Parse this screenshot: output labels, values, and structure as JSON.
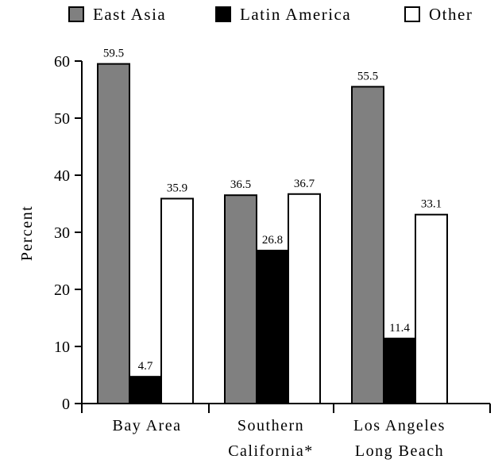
{
  "chart_data": {
    "type": "bar",
    "categories": [
      [
        "Bay Area"
      ],
      [
        "Southern",
        "California*"
      ],
      [
        "Los Angeles",
        "Long Beach"
      ]
    ],
    "series": [
      {
        "name": "East Asia",
        "values": [
          59.5,
          36.5,
          55.5
        ],
        "color": "#808080"
      },
      {
        "name": "Latin America",
        "values": [
          4.7,
          26.8,
          11.4
        ],
        "color": "#000000"
      },
      {
        "name": "Other",
        "values": [
          35.9,
          36.7,
          33.1
        ],
        "color": "#ffffff"
      }
    ],
    "value_labels": [
      [
        "59.5",
        "4.7",
        "35.9"
      ],
      [
        "36.5",
        "26.8",
        "36.7"
      ],
      [
        "55.5",
        "11.4",
        "33.1"
      ]
    ],
    "title": "",
    "xlabel": "",
    "ylabel": "Percent",
    "ylim": [
      0,
      60
    ],
    "yticks": [
      0,
      10,
      20,
      30,
      40,
      50,
      60
    ],
    "grid": false,
    "legend_position": "top"
  }
}
